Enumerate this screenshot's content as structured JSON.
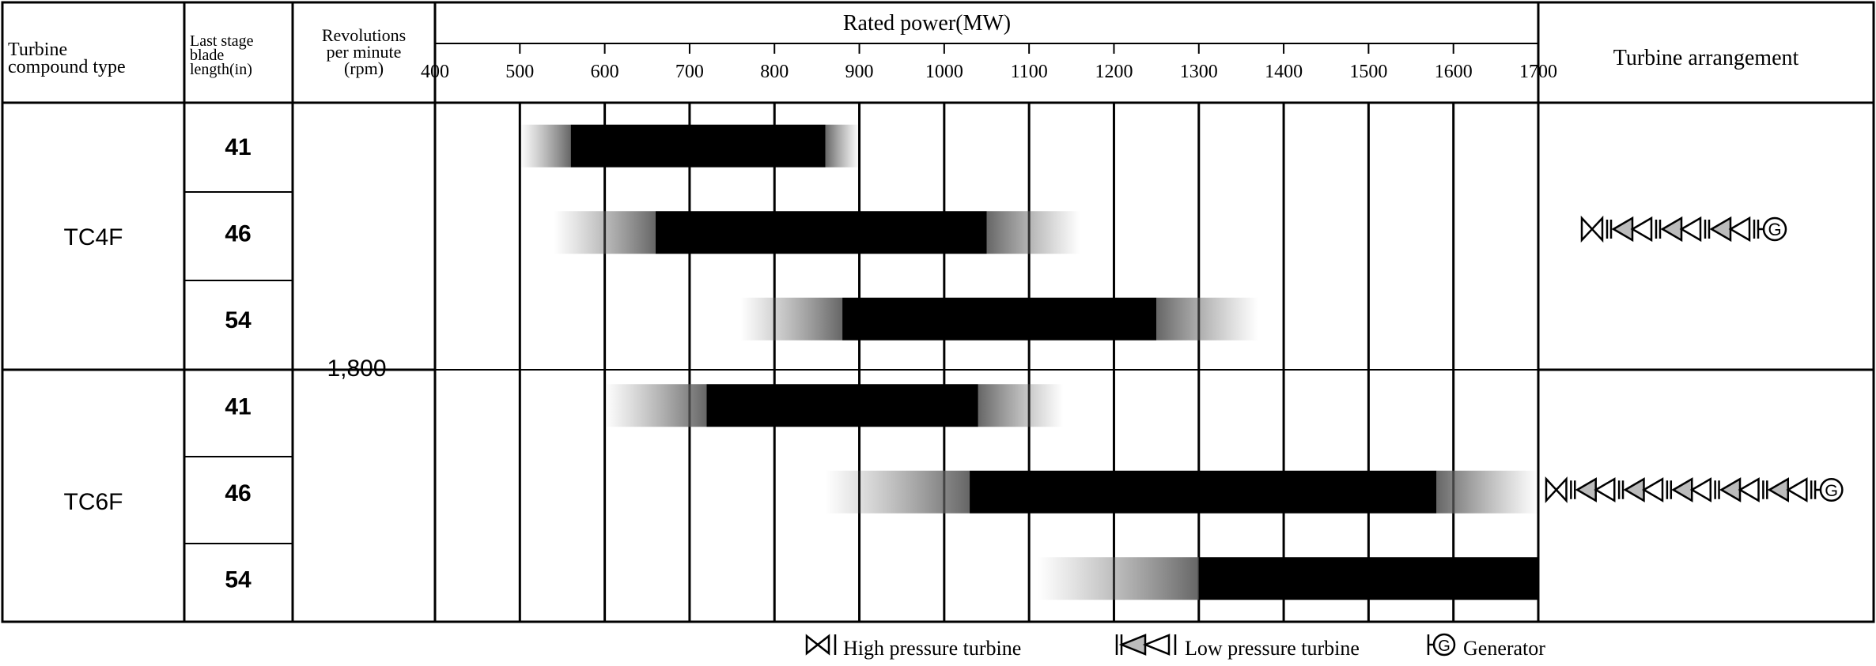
{
  "header": {
    "col_type": [
      "Turbine",
      "compound type"
    ],
    "col_blade": [
      "Last stage",
      "blade",
      "length(in)"
    ],
    "col_rpm": [
      "Revolutions",
      "per minute",
      "(rpm)"
    ],
    "rated_power_title": "Rated power(MW)",
    "arrangement_title": "Turbine arrangement"
  },
  "groups": [
    {
      "name": "TC4F",
      "arrangement": "HP-LP-LP-LP-Generator"
    },
    {
      "name": "TC6F",
      "arrangement": "HP-LP-LP-LP-LP-LP-Generator"
    }
  ],
  "rpm_value": "1,800",
  "legend": {
    "hp": "High pressure turbine",
    "lp": "Low pressure turbine",
    "gen_symbol": "G",
    "gen": "Generator"
  },
  "chart_data": {
    "type": "bar",
    "orientation": "horizontal-range",
    "title": "Rated power(MW)",
    "x_axis": {
      "label": "Rated power(MW)",
      "min": 400,
      "max": 1700,
      "ticks": [
        400,
        500,
        600,
        700,
        800,
        900,
        1000,
        1100,
        1200,
        1300,
        1400,
        1500,
        1600,
        1700
      ],
      "grid": true
    },
    "rows": [
      {
        "type": "TC4F",
        "blade_in": "41",
        "solid": [
          560,
          860
        ],
        "extended": [
          500,
          900
        ]
      },
      {
        "type": "TC4F",
        "blade_in": "46",
        "solid": [
          660,
          1050
        ],
        "extended": [
          540,
          1160
        ]
      },
      {
        "type": "TC4F",
        "blade_in": "54",
        "solid": [
          880,
          1250
        ],
        "extended": [
          760,
          1370
        ]
      },
      {
        "type": "TC6F",
        "blade_in": "41",
        "solid": [
          720,
          1040
        ],
        "extended": [
          600,
          1140
        ]
      },
      {
        "type": "TC6F",
        "blade_in": "46",
        "solid": [
          1030,
          1580
        ],
        "extended": [
          860,
          1700
        ]
      },
      {
        "type": "TC6F",
        "blade_in": "54",
        "solid": [
          1300,
          1700
        ],
        "extended": [
          1110,
          1700
        ]
      }
    ]
  },
  "colors": {
    "bar": "#000000",
    "grid": "#000000",
    "fade": "#777777"
  }
}
